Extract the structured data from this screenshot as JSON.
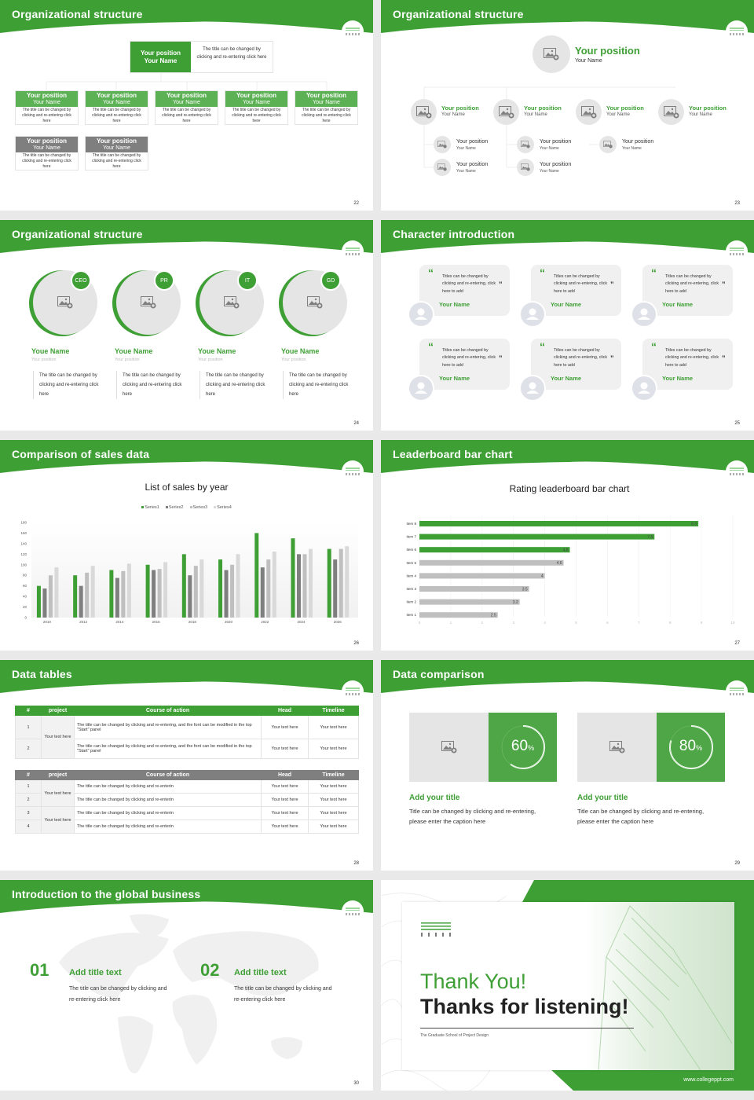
{
  "theme": {
    "green": "#3e9f35",
    "gray_dark": "#7f7f7f",
    "gray_light": "#e6e5e5"
  },
  "slides": [
    {
      "title": "Organizational structure",
      "page": "22",
      "top": {
        "position": "Your position",
        "name": "Your Name",
        "desc": "The title can be changed by clicking and re-entering click here"
      },
      "row1": [
        {
          "position": "Your position",
          "name": "Your Name",
          "desc": "The title can be changed by clicking and re-entering click here"
        },
        {
          "position": "Your position",
          "name": "Your Name",
          "desc": "The title can be changed by clicking and re-entering click here"
        },
        {
          "position": "Your position",
          "name": "Your Name",
          "desc": "The title can be changed by clicking and re-entering click here"
        },
        {
          "position": "Your position",
          "name": "Your Name",
          "desc": "The title can be changed by clicking and re-entering click here"
        },
        {
          "position": "Your position",
          "name": "Your Name",
          "desc": "The title can be changed by clicking and re-entering click here"
        }
      ],
      "row2": [
        {
          "position": "Your position",
          "name": "Your Name",
          "desc": "The title can be changed by clicking and re-entering click here"
        },
        {
          "position": "Your position",
          "name": "Your Name",
          "desc": "The title can be changed by clicking and re-entering click here"
        }
      ]
    },
    {
      "title": "Organizational structure",
      "page": "23",
      "top": {
        "position": "Your position",
        "name": "Your Name"
      },
      "level1": [
        {
          "position": "Your position",
          "name": "Your Name"
        },
        {
          "position": "Your position",
          "name": "Your Name"
        },
        {
          "position": "Your position",
          "name": "Your Name"
        },
        {
          "position": "Your position",
          "name": "Your Name"
        }
      ],
      "level2": [
        {
          "position": "Your position",
          "name": "Your Name"
        },
        {
          "position": "Your position",
          "name": "Your Name"
        },
        {
          "position": "Your position",
          "name": "Your Name"
        },
        {
          "position": "Your position",
          "name": "Your Name"
        },
        {
          "position": "Your position",
          "name": "Your Name"
        }
      ]
    },
    {
      "title": "Organizational structure",
      "page": "24",
      "members": [
        {
          "badge": "CEO",
          "name": "Youe Name",
          "position": "Your position",
          "desc": "The title can be changed by clicking and re-entering click here"
        },
        {
          "badge": "PR",
          "name": "Youe Name",
          "position": "Your position",
          "desc": "The title can be changed by clicking and re-entering click here"
        },
        {
          "badge": "IT",
          "name": "Youe Name",
          "position": "Your position",
          "desc": "The title can be changed by clicking and re-entering click here"
        },
        {
          "badge": "GD",
          "name": "Youe Name",
          "position": "Your position",
          "desc": "The title can be changed by clicking and re-entering click here"
        }
      ]
    },
    {
      "title": "Character introduction",
      "page": "25",
      "cards": [
        {
          "quote": "Titles can be changed by clicking and re-entering, click here to add",
          "name": "Your Name"
        },
        {
          "quote": "Titles can be changed by clicking and re-entering, click here to add",
          "name": "Your Name"
        },
        {
          "quote": "Titles can be changed by clicking and re-entering, click here to add",
          "name": "Your Name"
        },
        {
          "quote": "Titles can be changed by clicking and re-entering, click here to add",
          "name": "Your Name"
        },
        {
          "quote": "Titles can be changed by clicking and re-entering, click here to add",
          "name": "Your Name"
        },
        {
          "quote": "Titles can be changed by clicking and re-entering, click here to add",
          "name": "Your Name"
        }
      ],
      "open_quote": "“",
      "close_quote": "”"
    },
    {
      "title": "Comparison of sales data",
      "page": "26"
    },
    {
      "title": "Leaderboard bar chart",
      "page": "27"
    },
    {
      "title": "Data tables",
      "page": "28",
      "table1": {
        "headers": [
          "#",
          "project",
          "Course of action",
          "Head",
          "Timeline"
        ],
        "project": "Your text here",
        "rows": [
          {
            "num": "1",
            "action": "The title can be changed by clicking and re-entering, and the font can be modified in the top \"Start\" panel",
            "head": "Your text here",
            "timeline": "Your text here"
          },
          {
            "num": "2",
            "action": "The title can be changed by clicking and re-entering, and the font can be modified in the top \"Start\" panel",
            "head": "Your text here",
            "timeline": "Your text here"
          }
        ]
      },
      "table2": {
        "headers": [
          "#",
          "project",
          "Course of action",
          "Head",
          "Timeline"
        ],
        "projects": [
          "Your text here",
          "Your text here"
        ],
        "rows": [
          {
            "num": "1",
            "action": "The title can be changed by clicking and re-enterin",
            "head": "Your text here",
            "timeline": "Your text here"
          },
          {
            "num": "2",
            "action": "The title can be changed by clicking and re-enterin",
            "head": "Your text here",
            "timeline": "Your text here"
          },
          {
            "num": "3",
            "action": "The title can be changed by clicking and re-enterin",
            "head": "Your text here",
            "timeline": "Your text here"
          },
          {
            "num": "4",
            "action": "The title can be changed by clicking and re-enterin",
            "head": "Your text here",
            "timeline": "Your text here"
          }
        ]
      }
    },
    {
      "title": "Data comparison",
      "page": "29",
      "items": [
        {
          "percent": "60",
          "unit": "%",
          "title": "Add your title",
          "caption": "Title can be changed by clicking and re-entering, please enter the caption here"
        },
        {
          "percent": "80",
          "unit": "%",
          "title": "Add your title",
          "caption": "Title can be changed by clicking and re-entering, please enter the caption here"
        }
      ]
    },
    {
      "title": "Introduction to the global business",
      "page": "30",
      "points": [
        {
          "num": "01",
          "title": "Add title text",
          "desc": "The title can be changed by clicking and re-entering click here"
        },
        {
          "num": "02",
          "title": "Add title text",
          "desc": "The title can be changed by clicking and re-entering click here"
        }
      ]
    },
    {
      "thanks": "Thank You!",
      "subtitle": "Thanks for listening!",
      "school": "The Graduate School of Project Design",
      "url": "www.collegeppt.com"
    }
  ],
  "chart_data": [
    {
      "type": "bar",
      "title": "List of sales by year",
      "categories": [
        "2010",
        "2012",
        "2014",
        "2016",
        "2018",
        "2020",
        "2022",
        "2024",
        "2026"
      ],
      "series": [
        {
          "name": "Series1",
          "color": "#3e9f35",
          "values": [
            60,
            80,
            90,
            100,
            120,
            110,
            160,
            150,
            130
          ]
        },
        {
          "name": "Series2",
          "color": "#7f7f7f",
          "values": [
            55,
            60,
            75,
            90,
            80,
            90,
            95,
            120,
            110
          ]
        },
        {
          "name": "Series3",
          "color": "#bfbfbf",
          "values": [
            80,
            85,
            88,
            92,
            98,
            100,
            110,
            120,
            130
          ]
        },
        {
          "name": "Series4",
          "color": "#d9d9d9",
          "values": [
            95,
            98,
            102,
            105,
            110,
            120,
            125,
            130,
            135
          ]
        }
      ],
      "yticks": [
        "0",
        "20",
        "40",
        "60",
        "80",
        "100",
        "120",
        "140",
        "160",
        "180"
      ],
      "ylim": [
        0,
        180
      ],
      "legend_position": "top",
      "grid": false
    },
    {
      "type": "bar",
      "orientation": "horizontal",
      "title": "Rating leaderboard bar chart",
      "categories": [
        "Item 8",
        "Item 7",
        "Item 6",
        "Item 5",
        "Item 4",
        "Item 3",
        "Item 2",
        "Item 1"
      ],
      "values": [
        8.9,
        7.5,
        4.8,
        4.6,
        4,
        3.5,
        3.2,
        2.5
      ],
      "labels": [
        "8.9",
        "7.5",
        "4.8",
        "4.6",
        "4",
        "3.5",
        "3.2",
        "2.5"
      ],
      "highlight_colors": [
        "#3e9f35",
        "#3e9f35",
        "#3e9f35",
        "#bfbfbf",
        "#bfbfbf",
        "#bfbfbf",
        "#bfbfbf",
        "#bfbfbf"
      ],
      "xticks": [
        "0",
        "1",
        "2",
        "3",
        "4",
        "5",
        "6",
        "7",
        "8",
        "9",
        "10"
      ],
      "xlim": [
        0,
        10
      ],
      "grid": true
    }
  ]
}
